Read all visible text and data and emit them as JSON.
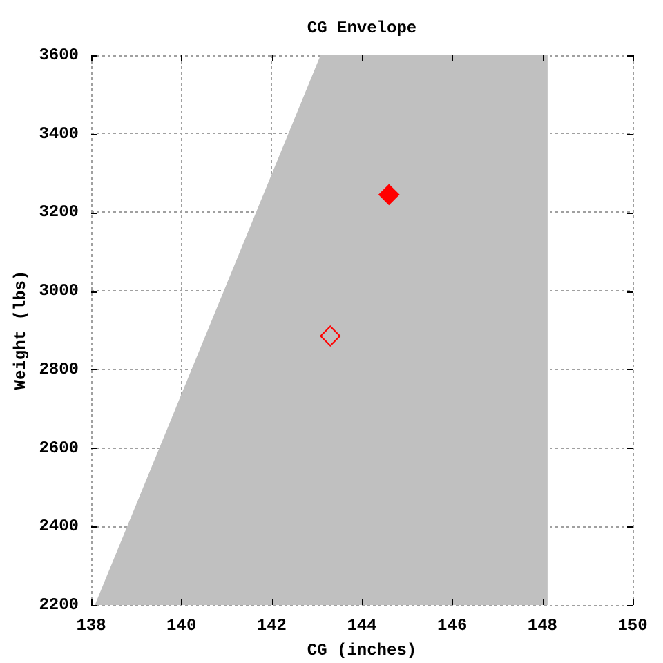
{
  "chart_data": {
    "type": "scatter",
    "title": "CG Envelope",
    "xlabel": "CG (inches)",
    "ylabel": "Weight (lbs)",
    "xlim": [
      138,
      150
    ],
    "ylim": [
      2200,
      3600
    ],
    "xticks": [
      138,
      140,
      142,
      144,
      146,
      148,
      150
    ],
    "yticks": [
      2200,
      2400,
      2600,
      2800,
      3000,
      3200,
      3400,
      3600
    ],
    "grid": true,
    "series": [
      {
        "type": "area",
        "color": "#c0c0c0",
        "x": [
          138.1,
          143.1,
          148.1,
          148.1
        ],
        "values": [
          2200,
          3600,
          3600,
          2200
        ]
      },
      {
        "color": "#ff0000",
        "marker": "diamond",
        "x": [
          144.6
        ],
        "values": [
          3245
        ]
      },
      {
        "color": "#ff0000",
        "marker": "diamond-open",
        "x": [
          143.3
        ],
        "values": [
          2885
        ]
      }
    ]
  }
}
